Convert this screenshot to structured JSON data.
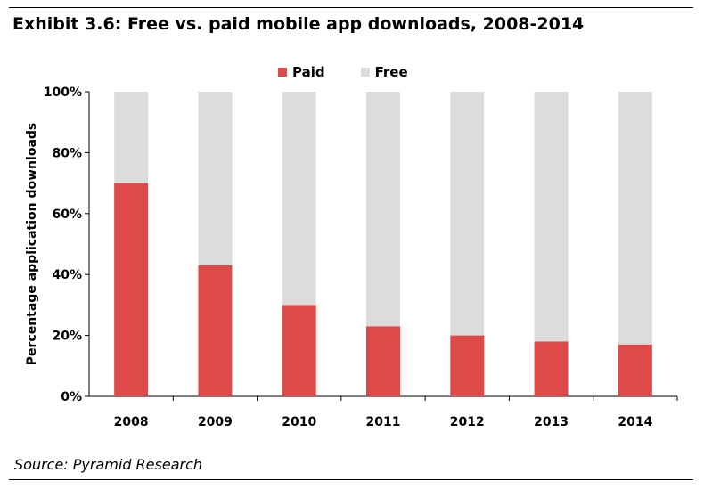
{
  "title": "Exhibit 3.6: Free vs. paid mobile app downloads, 2008-2014",
  "source": "Source: Pyramid Research",
  "colors": {
    "paid": "#de4a4a",
    "free": "#dcdcdc"
  },
  "chart_data": {
    "type": "bar",
    "stacked": true,
    "categories": [
      "2008",
      "2009",
      "2010",
      "2011",
      "2012",
      "2013",
      "2014"
    ],
    "series": [
      {
        "name": "Paid",
        "values": [
          70,
          43,
          30,
          23,
          20,
          18,
          17
        ]
      },
      {
        "name": "Free",
        "values": [
          30,
          57,
          70,
          77,
          80,
          82,
          83
        ]
      }
    ],
    "ylabel": "Percentage application downloads",
    "xlabel": "",
    "ylim": [
      0,
      100
    ],
    "yticks": [
      "0%",
      "20%",
      "40%",
      "60%",
      "80%",
      "100%"
    ],
    "legend": "top",
    "grid": false
  }
}
